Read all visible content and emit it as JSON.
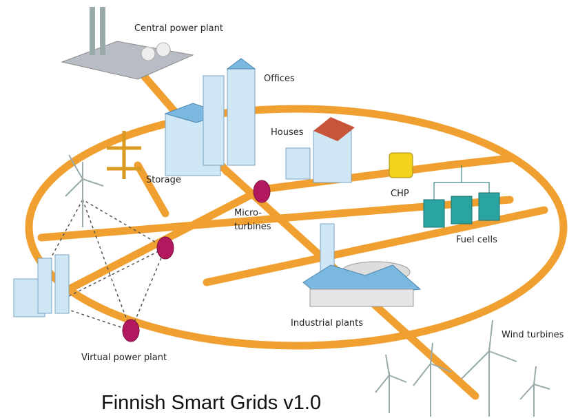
{
  "nodes": [
    {
      "label": "Central power plant"
    },
    {
      "label": "Offices"
    },
    {
      "label": "Houses"
    },
    {
      "label": "Storage"
    },
    {
      "label": "CHP"
    },
    {
      "lines": [
        "Micro-",
        "turbines"
      ]
    },
    {
      "label": "Fuel cells"
    },
    {
      "label": "Industrial plants"
    },
    {
      "label": "Wind turbines"
    },
    {
      "label": "Virtual power plant"
    }
  ],
  "caption": "Finnish Smart Grids v1.0"
}
